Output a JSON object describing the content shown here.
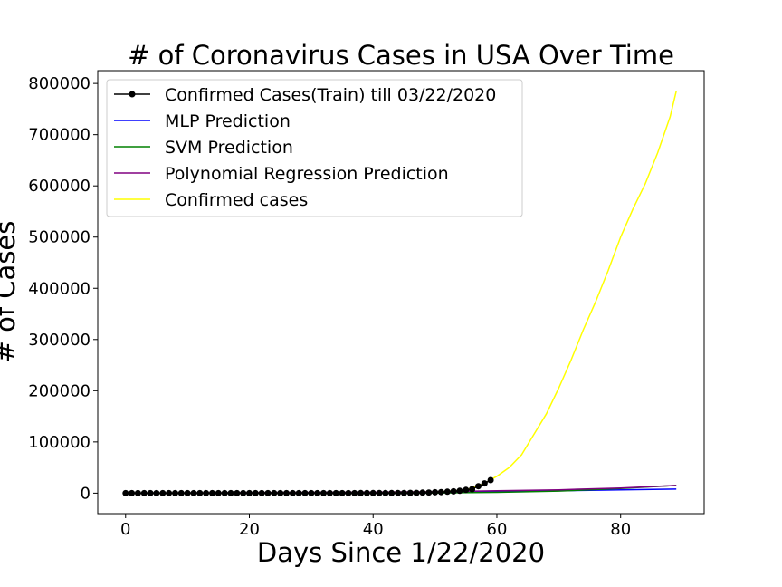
{
  "chart_data": {
    "type": "line",
    "title": "# of Coronavirus Cases in USA Over Time",
    "xlabel": "Days Since 1/22/2020",
    "ylabel": "# of Cases",
    "xlim": [
      -4.5,
      93.5
    ],
    "ylim": [
      -40000,
      825000
    ],
    "xticks": [
      0,
      20,
      40,
      60,
      80
    ],
    "yticks": [
      0,
      100000,
      200000,
      300000,
      400000,
      500000,
      600000,
      700000,
      800000
    ],
    "legend": "upper-left",
    "grid": false,
    "series": [
      {
        "name": "Confirmed Cases(Train) till 03/22/2020",
        "color": "#000000",
        "marker": "circle",
        "x": [
          0,
          1,
          2,
          3,
          4,
          5,
          6,
          7,
          8,
          9,
          10,
          11,
          12,
          13,
          14,
          15,
          16,
          17,
          18,
          19,
          20,
          21,
          22,
          23,
          24,
          25,
          26,
          27,
          28,
          29,
          30,
          31,
          32,
          33,
          34,
          35,
          36,
          37,
          38,
          39,
          40,
          41,
          42,
          43,
          44,
          45,
          46,
          47,
          48,
          49,
          50,
          51,
          52,
          53,
          54,
          55,
          56,
          57,
          58,
          59
        ],
        "values": [
          1,
          1,
          2,
          2,
          5,
          5,
          5,
          5,
          5,
          7,
          8,
          8,
          11,
          11,
          11,
          11,
          11,
          11,
          11,
          11,
          12,
          12,
          13,
          13,
          13,
          13,
          13,
          13,
          13,
          13,
          15,
          15,
          15,
          51,
          51,
          57,
          58,
          60,
          68,
          74,
          98,
          118,
          149,
          217,
          262,
          402,
          518,
          583,
          959,
          1281,
          1663,
          2179,
          2727,
          3499,
          4632,
          6421,
          7783,
          13677,
          19100,
          25489
        ]
      },
      {
        "name": "MLP Prediction",
        "color": "#0000ff",
        "marker": "none",
        "x": [
          0,
          10,
          20,
          30,
          40,
          50,
          60,
          70,
          80,
          89
        ],
        "values": [
          0,
          200,
          400,
          700,
          1000,
          1800,
          3000,
          4500,
          6500,
          8000
        ]
      },
      {
        "name": "SVM Prediction",
        "color": "#008000",
        "marker": "none",
        "x": [
          0,
          10,
          20,
          30,
          40,
          50,
          60,
          70,
          80,
          89
        ],
        "values": [
          0,
          0,
          0,
          0,
          0,
          300,
          1500,
          4000,
          9000,
          15000
        ]
      },
      {
        "name": "Polynomial Regression Prediction",
        "color": "#800080",
        "marker": "none",
        "x": [
          0,
          10,
          20,
          30,
          40,
          50,
          60,
          70,
          80,
          89
        ],
        "values": [
          0,
          500,
          1000,
          1500,
          2000,
          3000,
          4500,
          6500,
          10000,
          15000
        ]
      },
      {
        "name": "Confirmed cases",
        "color": "#ffff00",
        "marker": "none",
        "x": [
          0,
          10,
          20,
          30,
          40,
          50,
          55,
          58,
          60,
          62,
          64,
          66,
          68,
          70,
          72,
          74,
          76,
          78,
          80,
          82,
          84,
          86,
          88,
          89
        ],
        "values": [
          1,
          8,
          12,
          15,
          98,
          1663,
          6421,
          19100,
          33000,
          50000,
          75000,
          115000,
          155000,
          205000,
          260000,
          320000,
          375000,
          435000,
          500000,
          555000,
          605000,
          665000,
          735000,
          785000
        ]
      }
    ]
  }
}
